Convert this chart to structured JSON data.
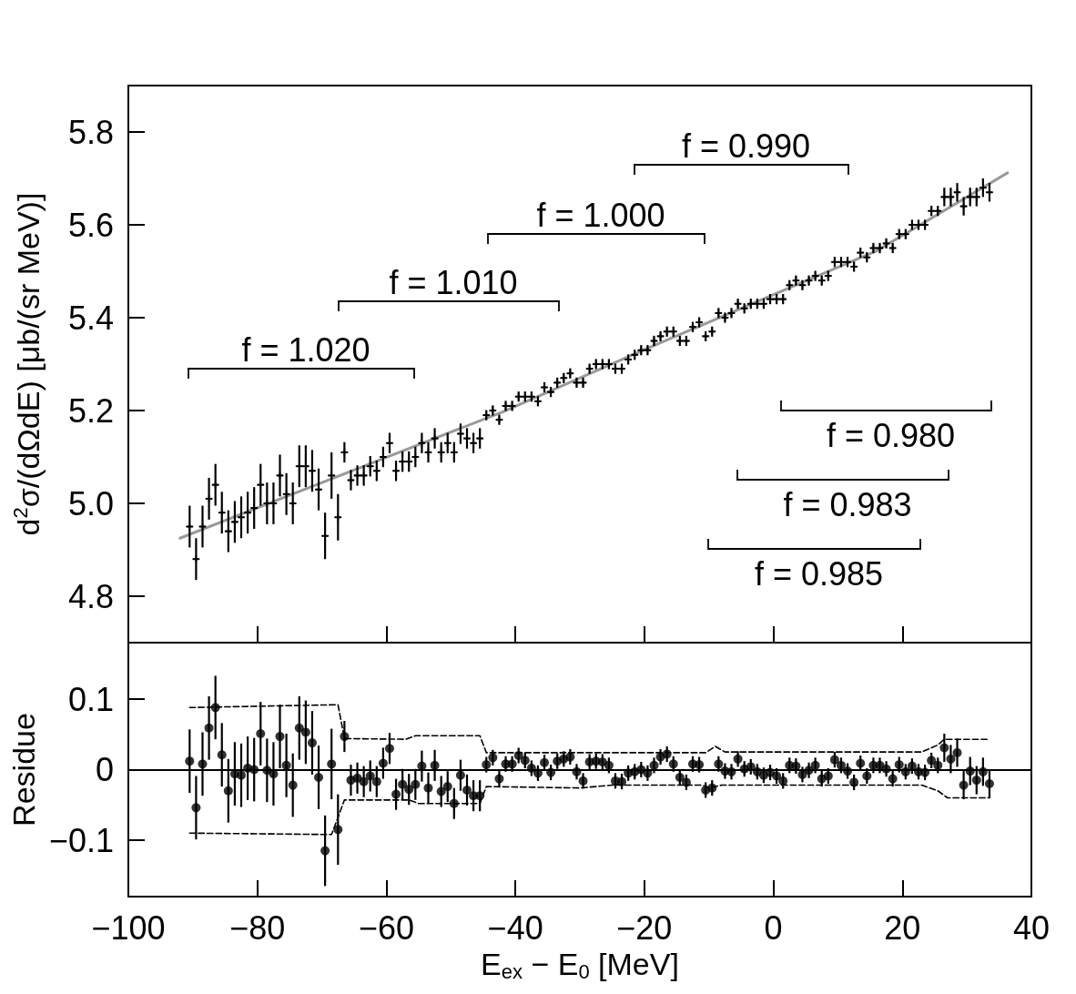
{
  "chart_data": [
    {
      "type": "scatter",
      "ylabel": "d$^{2}$σ/(dΩdE) [μb/(sr MeV)]",
      "xlim": [
        -100,
        40
      ],
      "xticks": [
        -100,
        -80,
        -60,
        -40,
        -20,
        0,
        20,
        40
      ],
      "ylim": [
        4.7,
        5.9
      ],
      "yticks": [
        4.8,
        {
          "value": 5,
          "label": "5.0"
        },
        5.2,
        5.4,
        5.6,
        5.8
      ],
      "tick_labels": "y",
      "annotations": [
        "f = 1.020",
        "f = 1.010",
        "f = 1.000",
        "f = 0.990",
        "f = 0.980",
        "f = 0.983",
        "f = 0.985"
      ],
      "series": [
        {
          "color": "#000000",
          "marker": "cross",
          "x": [
            -90.5,
            -89.5,
            -88.5,
            -87.5,
            -86.5,
            -85.5,
            -84.5,
            -83.5,
            -82.5,
            -81.5,
            -80.5,
            -79.5,
            -78.5,
            -77.5,
            -76.5,
            -75.5,
            -74.5,
            -73.5,
            -72.5,
            -71.5,
            -70.5,
            -69.5,
            -68.5,
            -67.5,
            -66.5,
            -65.5,
            -64.5,
            -63.5,
            -62.5,
            -61.5,
            -60.5,
            -59.5,
            -58.5,
            -57.5,
            -56.5,
            -55.5,
            -54.5,
            -53.5,
            -52.5,
            -51.5,
            -50.5,
            -49.5,
            -48.5,
            -47.5,
            -46.5,
            -45.5,
            -44.5,
            -43.5,
            -42.5,
            -41.5,
            -40.5,
            -39.5,
            -38.5,
            -37.5,
            -36.5,
            -35.5,
            -34.5,
            -33.5,
            -32.5,
            -31.5,
            -30.5,
            -29.5,
            -28.5,
            -27.5,
            -26.5,
            -25.5,
            -24.5,
            -23.5,
            -22.5,
            -21.5,
            -20.5,
            -19.5,
            -18.5,
            -17.5,
            -16.5,
            -15.5,
            -14.5,
            -13.5,
            -12.5,
            -11.5,
            -10.5,
            -9.5,
            -8.5,
            -7.5,
            -6.5,
            -5.5,
            -4.5,
            -3.5,
            -2.5,
            -1.5,
            -0.5,
            0.5,
            1.5,
            2.5,
            3.5,
            4.5,
            5.5,
            6.5,
            7.5,
            8.5,
            9.5,
            10.5,
            11.5,
            12.5,
            13.5,
            14.5,
            15.5,
            16.5,
            17.5,
            18.5,
            19.5,
            20.5,
            21.5,
            22.5,
            23.5,
            24.5,
            25.5,
            26.5,
            27.5,
            28.5,
            29.5,
            30.5,
            31.5,
            32.5,
            33.5
          ],
          "values": [
            4.95,
            4.88,
            4.95,
            5.01,
            5.04,
            4.98,
            4.94,
            4.96,
            4.97,
            4.98,
            4.99,
            5.04,
            5.0,
            5.0,
            5.06,
            5.02,
            5.0,
            5.08,
            5.08,
            5.07,
            5.03,
            4.93,
            5.06,
            4.97,
            5.11,
            5.05,
            5.06,
            5.06,
            5.08,
            5.07,
            5.1,
            5.13,
            5.07,
            5.09,
            5.09,
            5.1,
            5.13,
            5.11,
            5.14,
            5.11,
            5.13,
            5.11,
            5.15,
            5.14,
            5.13,
            5.14,
            5.19,
            5.2,
            5.18,
            5.21,
            5.21,
            5.23,
            5.23,
            5.23,
            5.22,
            5.25,
            5.24,
            5.26,
            5.27,
            5.28,
            5.26,
            5.26,
            5.29,
            5.3,
            5.3,
            5.3,
            5.29,
            5.29,
            5.31,
            5.32,
            5.33,
            5.33,
            5.35,
            5.36,
            5.37,
            5.37,
            5.35,
            5.35,
            5.38,
            5.39,
            5.36,
            5.37,
            5.41,
            5.4,
            5.41,
            5.43,
            5.42,
            5.43,
            5.43,
            5.43,
            5.44,
            5.44,
            5.44,
            5.47,
            5.48,
            5.47,
            5.48,
            5.49,
            5.48,
            5.49,
            5.52,
            5.52,
            5.52,
            5.51,
            5.54,
            5.53,
            5.55,
            5.55,
            5.56,
            5.55,
            5.58,
            5.58,
            5.6,
            5.6,
            5.6,
            5.63,
            5.63,
            5.66,
            5.66,
            5.67,
            5.64,
            5.66,
            5.66,
            5.68,
            5.67
          ],
          "errors": [
            0.045,
            0.045,
            0.045,
            0.045,
            0.045,
            0.045,
            0.045,
            0.045,
            0.045,
            0.045,
            0.045,
            0.045,
            0.045,
            0.045,
            0.045,
            0.045,
            0.045,
            0.045,
            0.045,
            0.045,
            0.045,
            0.05,
            0.05,
            0.05,
            0.022,
            0.022,
            0.022,
            0.022,
            0.022,
            0.022,
            0.022,
            0.022,
            0.022,
            0.022,
            0.022,
            0.022,
            0.022,
            0.022,
            0.022,
            0.022,
            0.022,
            0.022,
            0.022,
            0.022,
            0.022,
            0.022,
            0.011,
            0.011,
            0.011,
            0.011,
            0.011,
            0.011,
            0.011,
            0.011,
            0.011,
            0.011,
            0.011,
            0.011,
            0.011,
            0.011,
            0.011,
            0.011,
            0.011,
            0.011,
            0.011,
            0.011,
            0.011,
            0.011,
            0.011,
            0.011,
            0.011,
            0.011,
            0.011,
            0.011,
            0.011,
            0.011,
            0.011,
            0.011,
            0.011,
            0.011,
            0.011,
            0.011,
            0.011,
            0.011,
            0.011,
            0.011,
            0.011,
            0.011,
            0.011,
            0.011,
            0.011,
            0.011,
            0.011,
            0.011,
            0.011,
            0.011,
            0.011,
            0.011,
            0.011,
            0.011,
            0.011,
            0.011,
            0.011,
            0.011,
            0.011,
            0.011,
            0.011,
            0.011,
            0.011,
            0.011,
            0.011,
            0.011,
            0.011,
            0.011,
            0.011,
            0.011,
            0.011,
            0.02,
            0.02,
            0.02,
            0.02,
            0.02,
            0.02,
            0.02,
            0.02
          ],
          "xerrors": [
            0.5,
            0.5,
            0.5,
            0.5,
            0.5,
            0.5,
            0.5,
            0.5,
            0.5,
            0.5,
            0.5,
            0.5,
            0.5,
            0.5,
            0.5,
            0.5,
            0.5,
            0.5,
            0.5,
            0.5,
            0.5,
            0.5,
            0.5,
            0.5,
            0.5,
            0.5,
            0.5,
            0.5,
            0.5,
            0.5,
            0.5,
            0.5,
            0.5,
            0.5,
            0.5,
            0.5,
            0.5,
            0.5,
            0.5,
            0.5,
            0.5,
            0.5,
            0.5,
            0.5,
            0.5,
            0.5,
            0.5,
            0.5,
            0.5,
            0.5,
            0.5,
            0.5,
            0.5,
            0.5,
            0.5,
            0.5,
            0.5,
            0.5,
            0.5,
            0.5,
            0.5,
            0.5,
            0.5,
            0.5,
            0.5,
            0.5,
            0.5,
            0.5,
            0.5,
            0.5,
            0.5,
            0.5,
            0.5,
            0.5,
            0.5,
            0.5,
            0.5,
            0.5,
            0.5,
            0.5,
            0.5,
            0.5,
            0.5,
            0.5,
            0.5,
            0.5,
            0.5,
            0.5,
            0.5,
            0.5,
            0.5,
            0.5,
            0.5,
            0.5,
            0.5,
            0.5,
            0.5,
            0.5,
            0.5,
            0.5,
            0.5,
            0.5,
            0.5,
            0.5,
            0.5,
            0.5,
            0.5,
            0.5,
            0.5,
            0.5,
            0.5,
            0.5,
            0.5,
            0.5,
            0.5,
            0.5,
            0.5,
            0.5,
            0.5,
            0.5,
            0.5,
            0.5,
            0.5,
            0.5,
            0.5
          ]
        },
        {
          "type": "line",
          "color": "#999999",
          "x": [
            -92,
            -42,
            -20,
            -2.8,
            16,
            36.3
          ],
          "values": [
            4.925,
            5.197,
            5.331,
            5.433,
            5.544,
            5.712
          ]
        }
      ]
    },
    {
      "type": "scatter",
      "xlabel": "E$_{ex}$ − E$_{0}$ [MeV]",
      "ylabel": "Residue",
      "xlim": [
        -100,
        40
      ],
      "xticks": [
        {
          "value": -100,
          "label": "−100"
        },
        {
          "value": -80,
          "label": "−80"
        },
        {
          "value": -60,
          "label": "−60"
        },
        {
          "value": -40,
          "label": "−40"
        },
        {
          "value": -20,
          "label": "−20"
        },
        0,
        20,
        40
      ],
      "ylim": [
        -0.18,
        0.18
      ],
      "yticks": [
        {
          "value": -0.1,
          "label": "−0.1"
        },
        0,
        0.1
      ],
      "ref_lines": [
        {
          "axis": "y",
          "value": 0,
          "color": "#000000"
        }
      ],
      "series": [
        {
          "color": "#000000",
          "marker": "circle",
          "x": [
            -90.5,
            -89.5,
            -88.5,
            -87.5,
            -86.5,
            -85.5,
            -84.5,
            -83.5,
            -82.5,
            -81.5,
            -80.5,
            -79.5,
            -78.5,
            -77.5,
            -76.5,
            -75.5,
            -74.5,
            -73.5,
            -72.5,
            -71.5,
            -70.5,
            -69.5,
            -68.5,
            -67.5,
            -66.5,
            -65.5,
            -64.5,
            -63.5,
            -62.5,
            -61.5,
            -60.5,
            -59.5,
            -58.5,
            -57.5,
            -56.5,
            -55.5,
            -54.5,
            -53.5,
            -52.5,
            -51.5,
            -50.5,
            -49.5,
            -48.5,
            -47.5,
            -46.5,
            -45.5,
            -44.5,
            -43.5,
            -42.5,
            -41.5,
            -40.5,
            -39.5,
            -38.5,
            -37.5,
            -36.5,
            -35.5,
            -34.5,
            -33.5,
            -32.5,
            -31.5,
            -30.5,
            -29.5,
            -28.5,
            -27.5,
            -26.5,
            -25.5,
            -24.5,
            -23.5,
            -22.5,
            -21.5,
            -20.5,
            -19.5,
            -18.5,
            -17.5,
            -16.5,
            -15.5,
            -14.5,
            -13.5,
            -12.5,
            -11.5,
            -10.5,
            -9.5,
            -8.5,
            -7.5,
            -6.5,
            -5.5,
            -4.5,
            -3.5,
            -2.5,
            -1.5,
            -0.5,
            0.5,
            1.5,
            2.5,
            3.5,
            4.5,
            5.5,
            6.5,
            7.5,
            8.5,
            9.5,
            10.5,
            11.5,
            12.5,
            13.5,
            14.5,
            15.5,
            16.5,
            17.5,
            18.5,
            19.5,
            20.5,
            21.5,
            22.5,
            23.5,
            24.5,
            25.5,
            26.5,
            27.5,
            28.5,
            29.5,
            30.5,
            31.5,
            32.5,
            33.5
          ],
          "values": [
            0.012,
            -0.054,
            0.008,
            0.059,
            0.088,
            0.021,
            -0.03,
            -0.006,
            -0.008,
            0.002,
            0,
            0.051,
            -0.001,
            -0.006,
            0.047,
            0.006,
            -0.022,
            0.059,
            0.053,
            0.038,
            -0.011,
            -0.115,
            0.008,
            -0.085,
            0.047,
            -0.015,
            -0.012,
            -0.017,
            -0.009,
            -0.017,
            0.009,
            0.03,
            -0.035,
            -0.021,
            -0.028,
            -0.021,
            0.005,
            -0.026,
            0.006,
            -0.031,
            -0.024,
            -0.048,
            -0.008,
            -0.029,
            -0.037,
            -0.037,
            0.007,
            0.017,
            -0.013,
            0.008,
            0.008,
            0.02,
            0.013,
            0.002,
            -0.005,
            0.01,
            -0.004,
            0.012,
            0.015,
            0.018,
            -0.003,
            -0.016,
            0.011,
            0.012,
            0.011,
            0.006,
            -0.016,
            -0.017,
            -0.005,
            -0.003,
            0,
            -0.005,
            0.006,
            0.018,
            0.022,
            0.008,
            -0.011,
            -0.018,
            0.008,
            0.007,
            -0.029,
            -0.026,
            0.008,
            -0.002,
            -0.003,
            0.015,
            0.001,
            0.004,
            -0.003,
            -0.008,
            -0.004,
            -0.009,
            -0.016,
            0.006,
            0.005,
            -0.007,
            -0.001,
            0.006,
            -0.013,
            -0.009,
            0.014,
            0.006,
            -0.002,
            -0.018,
            0.009,
            -0.009,
            0.006,
            0.006,
            0.001,
            -0.013,
            0.007,
            -0.003,
            0.005,
            -0.003,
            -0.004,
            0.013,
            0.006,
            0.031,
            0.015,
            0.024,
            -0.022,
            -0.002,
            -0.015,
            -0.003,
            -0.02
          ],
          "errors": [
            0.045,
            0.045,
            0.045,
            0.045,
            0.045,
            0.045,
            0.045,
            0.045,
            0.045,
            0.045,
            0.045,
            0.045,
            0.045,
            0.045,
            0.045,
            0.045,
            0.045,
            0.045,
            0.045,
            0.045,
            0.045,
            0.05,
            0.05,
            0.05,
            0.022,
            0.022,
            0.022,
            0.022,
            0.022,
            0.022,
            0.022,
            0.022,
            0.022,
            0.022,
            0.022,
            0.022,
            0.022,
            0.022,
            0.022,
            0.022,
            0.022,
            0.022,
            0.022,
            0.022,
            0.022,
            0.022,
            0.011,
            0.011,
            0.011,
            0.011,
            0.011,
            0.011,
            0.011,
            0.011,
            0.011,
            0.011,
            0.011,
            0.011,
            0.011,
            0.011,
            0.011,
            0.011,
            0.011,
            0.011,
            0.011,
            0.011,
            0.011,
            0.011,
            0.011,
            0.011,
            0.011,
            0.011,
            0.011,
            0.011,
            0.011,
            0.011,
            0.011,
            0.011,
            0.011,
            0.011,
            0.011,
            0.011,
            0.011,
            0.011,
            0.011,
            0.011,
            0.011,
            0.011,
            0.011,
            0.011,
            0.011,
            0.011,
            0.011,
            0.011,
            0.011,
            0.011,
            0.011,
            0.011,
            0.011,
            0.011,
            0.011,
            0.011,
            0.011,
            0.011,
            0.011,
            0.011,
            0.011,
            0.011,
            0.011,
            0.011,
            0.011,
            0.011,
            0.011,
            0.011,
            0.011,
            0.011,
            0.011,
            0.02,
            0.02,
            0.02,
            0.02,
            0.02,
            0.02,
            0.02,
            0.02
          ]
        },
        {
          "type": "line",
          "color": "#000000",
          "line_style": "dashed",
          "x": [
            -90.5,
            -67.5,
            -66.5,
            -57,
            -55.5,
            -45.5,
            -44.5,
            -10.5,
            -9,
            -7.5,
            23,
            25.5,
            26.5,
            33.5
          ],
          "values": [
            0.088,
            0.092,
            0.044,
            0.043,
            0.048,
            0.048,
            0.024,
            0.024,
            0.033,
            0.025,
            0.025,
            0.035,
            0.043,
            0.043
          ]
        },
        {
          "type": "line",
          "color": "#000000",
          "line_style": "dashed",
          "x": [
            -90.5,
            -68.5,
            -66.5,
            -56.5,
            -55,
            -45.5,
            -44.5,
            -30,
            -25,
            -11,
            -10,
            -8,
            23,
            25.5,
            27,
            33.5
          ],
          "values": [
            -0.09,
            -0.092,
            -0.043,
            -0.043,
            -0.048,
            -0.048,
            -0.024,
            -0.026,
            -0.022,
            -0.022,
            -0.026,
            -0.022,
            -0.022,
            -0.03,
            -0.04,
            -0.04
          ]
        }
      ]
    }
  ]
}
